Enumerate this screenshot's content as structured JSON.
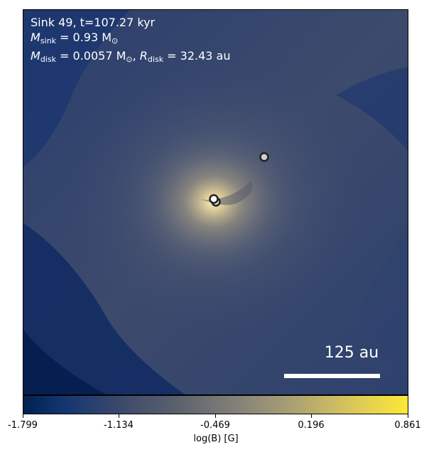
{
  "annotation": {
    "line1": "Sink 49, t=107.27 kyr",
    "line2_symbol": "M",
    "line2_sub": "sink",
    "line2_value": " = 0.93 M",
    "line2_unit_sub": "⊙",
    "line3_symbol": "M",
    "line3_sub": "disk",
    "line3_value": " = 0.0057 M",
    "line3_unit_sub": "⊙",
    "line3_sep": ", ",
    "line3_r_symbol": "R",
    "line3_r_sub": "disk",
    "line3_r_value": " = 32.43 au"
  },
  "scale_bar": {
    "label": "125 au"
  },
  "colorbar": {
    "label": "log(B) [G]",
    "ticks": [
      "-1.799",
      "-1.134",
      "-0.469",
      "0.196",
      "0.861"
    ],
    "colors": [
      "#00224e",
      "#3b496c",
      "#707173",
      "#a59c74",
      "#fde838"
    ]
  },
  "sinks": [
    {
      "name": "sink-main",
      "fill": "#ffffff"
    },
    {
      "name": "sink-companion",
      "fill": "#d9d9d9"
    },
    {
      "name": "sink-outer",
      "fill": "#cfcfcf"
    }
  ]
}
